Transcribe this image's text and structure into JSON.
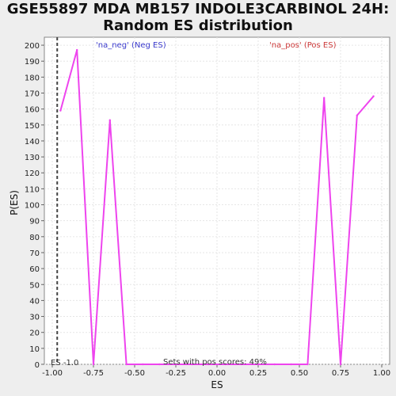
{
  "chart_data": {
    "type": "line",
    "title_line1": "GSE55897 MDA MB157 INDOLE3CARBINOL 24H:",
    "title_line2": "Random ES distribution",
    "xlabel": "ES",
    "ylabel": "P(ES)",
    "xlim": [
      -1.0,
      1.0
    ],
    "ylim": [
      0,
      205
    ],
    "x_ticks": [
      "-1.00",
      "-0.75",
      "-0.50",
      "-0.25",
      "0.00",
      "0.25",
      "0.50",
      "0.75",
      "1.00"
    ],
    "y_ticks": [
      0,
      10,
      20,
      30,
      40,
      50,
      60,
      70,
      80,
      90,
      100,
      110,
      120,
      130,
      140,
      150,
      160,
      170,
      180,
      190,
      200
    ],
    "grid": true,
    "series": [
      {
        "color": "#ee44ee",
        "points": [
          [
            -0.95,
            159
          ],
          [
            -0.85,
            197
          ],
          [
            -0.75,
            0
          ],
          [
            -0.65,
            153
          ],
          [
            -0.55,
            0
          ],
          [
            -0.45,
            0
          ],
          [
            -0.35,
            0
          ],
          [
            -0.25,
            0
          ],
          [
            -0.15,
            0
          ],
          [
            -0.05,
            0
          ],
          [
            0.05,
            0
          ],
          [
            0.15,
            0
          ],
          [
            0.25,
            0
          ],
          [
            0.35,
            0
          ],
          [
            0.45,
            0
          ],
          [
            0.55,
            0
          ],
          [
            0.65,
            167
          ],
          [
            0.75,
            0
          ],
          [
            0.85,
            156
          ],
          [
            0.95,
            168
          ]
        ]
      }
    ],
    "marker_line": {
      "x": -0.97,
      "label": "ES -1.0"
    },
    "legend_neg": "'na_neg' (Neg ES)",
    "legend_pos": "'na_pos' (Pos ES)",
    "annotation": "Sets with pos scores: 49%"
  }
}
